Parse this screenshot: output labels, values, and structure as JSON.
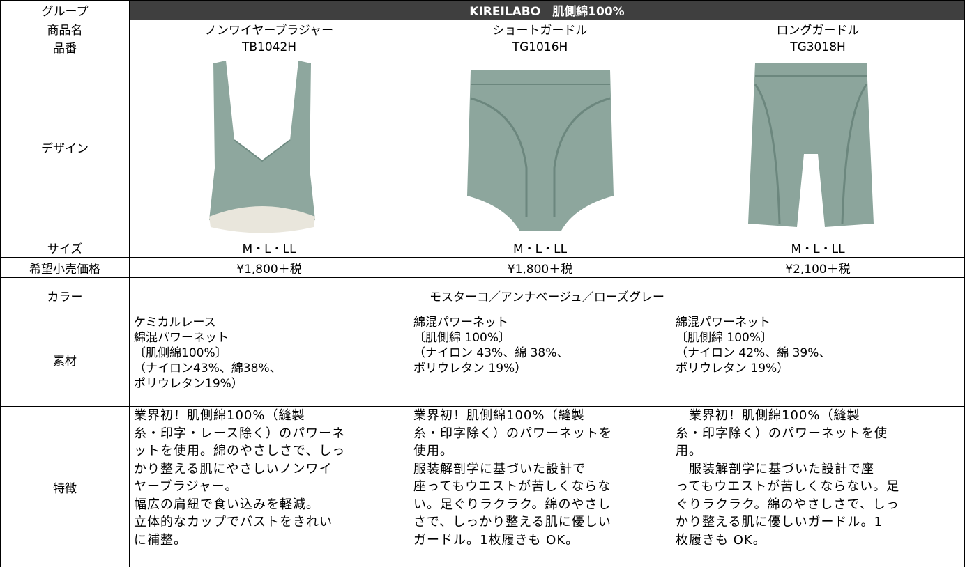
{
  "table": {
    "row_labels": [
      "グループ",
      "商品名",
      "品番",
      "デザイン",
      "サイズ",
      "希望小売価格",
      "カラー",
      "素材",
      "特徴"
    ],
    "group": "KIREILABO　肌側綿100%",
    "colors": "モスターコ／アンナベージュ／ローズグレー",
    "products": [
      {
        "name": "ノンワイヤーブラジャー",
        "code": "TB1042H",
        "size": "M・L・LL",
        "price": "¥1,800＋税",
        "material": [
          "ケミカルレース",
          "綿混パワーネット",
          "〔肌側綿100%〕",
          "（ナイロン43%、綿38%、",
          "ポリウレタン19%）"
        ],
        "features": [
          "業界初！肌側綿100%（縫製",
          "糸・印字・レース除く）のパワーネ",
          "ットを使用。綿のやさしさで、しっ",
          "かり整える肌にやさしいノンワイ",
          "ヤーブラジャー。",
          "幅広の肩紐で食い込みを軽減。",
          "立体的なカップでバストをきれい",
          "に補整。"
        ]
      },
      {
        "name": "ショートガードル",
        "code": "TG1016H",
        "size": "M・L・LL",
        "price": "¥1,800＋税",
        "material": [
          "綿混パワーネット",
          "〔肌側綿 100%〕",
          "（ナイロン 43%、綿 38%、",
          "ポリウレタン 19%）"
        ],
        "features": [
          "業界初！肌側綿100%（縫製",
          "糸・印字除く）のパワーネットを",
          "使用。",
          "服装解剖学に基づいた設計で",
          "座ってもウエストが苦しくならな",
          "い。足ぐりラクラク。綿のやさし",
          "さで、しっかり整える肌に優しい",
          "ガードル。1枚履きも OK。"
        ]
      },
      {
        "name": "ロングガードル",
        "code": "TG3018H",
        "size": "M・L・LL",
        "price": "¥2,100＋税",
        "material": [
          "綿混パワーネット",
          "〔肌側綿 100%〕",
          "（ナイロン 42%、綿 39%、",
          "ポリウレタン 19%）"
        ],
        "features": [
          "　業界初！肌側綿100%（縫製",
          "糸・印字除く）のパワーネットを使",
          "用。",
          "　服装解剖学に基づいた設計で座",
          "ってもウエストが苦しくならない。足",
          "ぐりラクラク。綿のやさしさで、しっ",
          "かり整える肌に優しいガードル。1",
          "枚履きも OK。"
        ]
      }
    ]
  }
}
